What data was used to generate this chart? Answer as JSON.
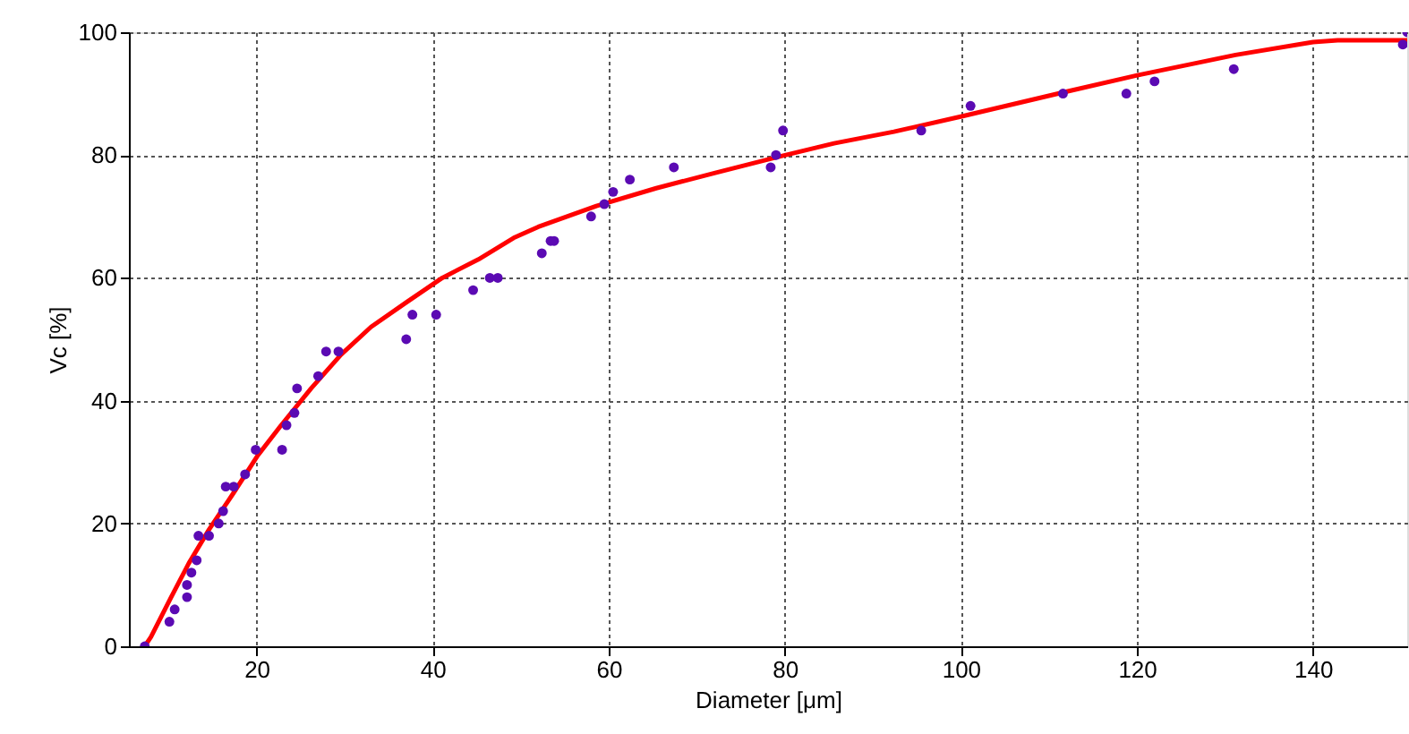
{
  "chart_data": {
    "type": "scatter",
    "xlabel": "Diameter [μm]",
    "ylabel": "Vc [%]",
    "xlim": [
      5.5,
      150.7
    ],
    "ylim": [
      0,
      100
    ],
    "xticks": [
      20,
      40,
      60,
      80,
      100,
      120,
      140
    ],
    "yticks": [
      0,
      20,
      40,
      60,
      80,
      100
    ],
    "grid": true,
    "series": [
      {
        "color": "#5b0ab3",
        "marker": "circle",
        "x": [
          7.3,
          10.1,
          10.7,
          12.1,
          12.1,
          12.6,
          13.2,
          13.4,
          14.6,
          15.7,
          16.2,
          16.5,
          17.4,
          18.7,
          19.9,
          22.9,
          23.4,
          24.3,
          24.6,
          27.0,
          27.9,
          29.3,
          37.0,
          37.7,
          40.4,
          44.6,
          46.5,
          47.4,
          52.4,
          53.4,
          53.8,
          58.0,
          59.5,
          60.5,
          62.4,
          67.4,
          78.4,
          79.0,
          79.8,
          95.5,
          101.1,
          111.6,
          118.8,
          122.0,
          131.0,
          150.2,
          150.7
        ],
        "values": [
          0,
          4,
          6,
          8,
          10,
          12,
          14,
          18,
          18,
          20,
          22,
          26,
          26,
          28,
          32,
          32,
          36,
          38,
          42,
          44,
          48,
          48,
          50,
          54,
          54,
          58,
          60,
          60,
          64,
          66,
          66,
          70,
          72,
          74,
          76,
          78,
          78,
          80,
          84,
          84,
          88,
          90,
          90,
          92,
          94,
          98,
          100
        ]
      },
      {
        "type": "line",
        "marker": "none",
        "color": "#ff0000",
        "x": [
          7.3,
          8.0,
          10.3,
          12.3,
          14.6,
          17.4,
          20.1,
          22.8,
          26.2,
          29.6,
          33.0,
          37.0,
          41.1,
          45.2,
          49.2,
          52.0,
          58.6,
          65.4,
          72.1,
          79.5,
          85.6,
          92.4,
          100.1,
          111.6,
          120.4,
          131.2,
          140.0,
          142.8,
          150.7
        ],
        "values": [
          0,
          1.5,
          8,
          13.5,
          19,
          25,
          31,
          36,
          42,
          47.5,
          52,
          56,
          60,
          63,
          66.5,
          68.3,
          71.7,
          74.6,
          77.1,
          79.8,
          81.9,
          83.8,
          86.3,
          90.2,
          93.1,
          96.3,
          98.4,
          98.7,
          98.7
        ]
      }
    ]
  }
}
